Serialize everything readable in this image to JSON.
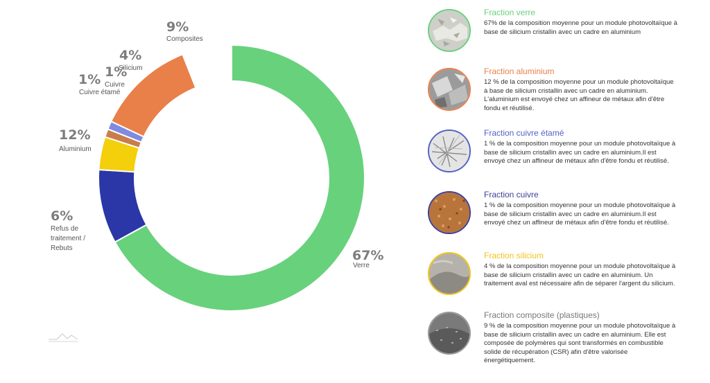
{
  "chart_data": {
    "type": "pie",
    "variant": "donut",
    "categories": [
      "Verre",
      "Composites",
      "Silicium",
      "Cuivre",
      "Cuivre étamé",
      "Aluminium",
      "Refus de traitement / Rebuts"
    ],
    "values": [
      67,
      9,
      4,
      1,
      1,
      12,
      6
    ],
    "value_labels": [
      "67%",
      "9%",
      "4%",
      "1%",
      "1%",
      "12%",
      "6%"
    ],
    "colors": [
      "#68D17C",
      "#2B37A6",
      "#F3CF0C",
      "#C97D4A",
      "#7F8BE0",
      "#E9804A",
      "#FFFFFF"
    ]
  },
  "legend": [
    {
      "title": "Fraction verre",
      "color": "#68D17C",
      "icon": "glass-fragments-photo",
      "text": "67% de la composition moyenne pour un module photovoltaïque à base de silicium cristallin avec un cadre en aluminium"
    },
    {
      "title": "Fraction aluminium",
      "color": "#E9804A",
      "icon": "aluminium-scraps-photo",
      "text": "12 % de la composition moyenne pour un module photovoltaïque à base de silicium cristallin avec un cadre en aluminium. L'aluminium est envoyé chez un affineur de métaux afin d'être fondu et réutilisé."
    },
    {
      "title": "Fraction cuivre étamé",
      "color": "#5660C4",
      "icon": "tinned-copper-wire-photo",
      "text": "1 % de la composition moyenne pour un module photovoltaïque à base de silicium cristallin avec un cadre en aluminium.Il est envoyé chez un affineur de métaux afin d'être fondu et réutilisé."
    },
    {
      "title": "Fraction cuivre",
      "color": "#3C3F98",
      "icon": "copper-granules-photo",
      "text": "1 % de la composition moyenne pour un module photovoltaïque à base de silicium cristallin avec un cadre en aluminium.Il est envoyé chez un affineur de métaux afin d'être fondu et réutilisé."
    },
    {
      "title": "Fraction silicium",
      "color": "#F0C419",
      "icon": "silicon-powder-photo",
      "text": "4 % de la composition moyenne pour un module photovoltaïque à base de silicium cristallin avec un cadre en aluminium. Un traitement aval est nécessaire afin de séparer l'argent du silicium."
    },
    {
      "title": "Fraction composite (plastiques)",
      "color": "#777777",
      "icon": "composite-plastics-photo",
      "text": "9 % de la composition moyenne pour un module photovoltaïque à base de silicium cristallin avec un cadre en aluminium. Elle est composée de polymères qui sont transformés en combustible solide de récupération (CSR) afin d'être valorisée énergétiquement."
    }
  ]
}
